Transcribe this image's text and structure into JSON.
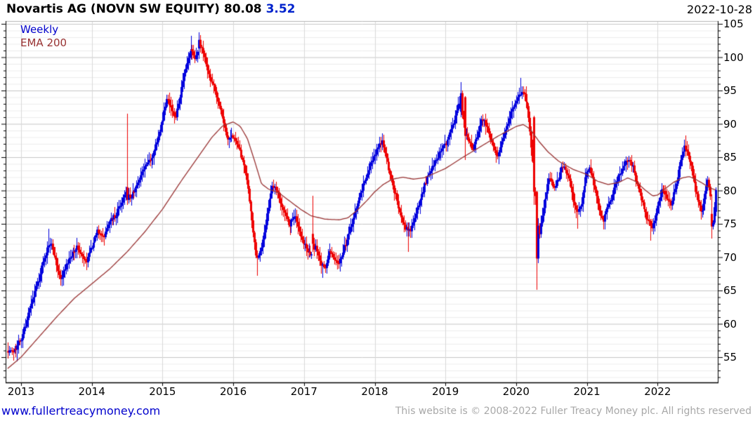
{
  "header": {
    "title": "Novartis AG (NOVN SW EQUITY) 80.08",
    "change": "3.52",
    "date": "2022-10-28"
  },
  "legend": {
    "timeframe": "Weekly",
    "overlay": "EMA 200"
  },
  "footer": {
    "link": "www.fullertreacymoney.com",
    "copyright": "This website is © 2008-2022 Fuller Treacy Money plc. All rights reserved"
  },
  "colors": {
    "up": "#0000dd",
    "down": "#ee0000",
    "ema": "#993333",
    "title": "#000000",
    "change": "#0022cc",
    "link": "#0000cc",
    "copyright": "#a8a8a8",
    "axis": "#000000",
    "top_border": "#b5b5b5",
    "grid_major": "#c6c6c6",
    "grid_minor": "#ededed",
    "grid_year": "#d9d9d9",
    "label": "#000000"
  },
  "chart_data": {
    "type": "bar",
    "subtype": "weekly-candlestick-with-ema",
    "symbol": "NOVN SW EQUITY",
    "last_close": 80.08,
    "change": 3.52,
    "title": "Novartis AG (NOVN SW EQUITY)",
    "xlabel": "",
    "ylabel": "",
    "x_ticks": [
      2013,
      2014,
      2015,
      2016,
      2017,
      2018,
      2019,
      2020,
      2021,
      2022
    ],
    "y_ticks": [
      55,
      60,
      65,
      70,
      75,
      80,
      85,
      90,
      95,
      100,
      105
    ],
    "y_minor_step": 1,
    "xlim": [
      2012.81,
      2022.82
    ],
    "ylim": [
      51.2,
      105.4
    ],
    "grid": true,
    "price_anchors": [
      [
        2012.81,
        56.2
      ],
      [
        2012.87,
        55.7
      ],
      [
        2012.93,
        56.5
      ],
      [
        2013.0,
        57.8
      ],
      [
        2013.06,
        60.0
      ],
      [
        2013.13,
        62.5
      ],
      [
        2013.2,
        65.0
      ],
      [
        2013.28,
        68.0
      ],
      [
        2013.36,
        71.0
      ],
      [
        2013.42,
        72.3
      ],
      [
        2013.48,
        70.0
      ],
      [
        2013.55,
        66.6
      ],
      [
        2013.62,
        68.5
      ],
      [
        2013.7,
        70.0
      ],
      [
        2013.78,
        71.5
      ],
      [
        2013.85,
        70.2
      ],
      [
        2013.92,
        69.2
      ],
      [
        2014.0,
        71.5
      ],
      [
        2014.08,
        74.0
      ],
      [
        2014.16,
        73.0
      ],
      [
        2014.25,
        75.5
      ],
      [
        2014.34,
        76.3
      ],
      [
        2014.42,
        78.3
      ],
      [
        2014.48,
        80.0
      ],
      [
        2014.54,
        78.8
      ],
      [
        2014.62,
        80.5
      ],
      [
        2014.7,
        82.5
      ],
      [
        2014.78,
        84.0
      ],
      [
        2014.86,
        85.5
      ],
      [
        2014.93,
        87.5
      ],
      [
        2015.0,
        91.0
      ],
      [
        2015.06,
        94.3
      ],
      [
        2015.12,
        92.0
      ],
      [
        2015.18,
        90.8
      ],
      [
        2015.25,
        94.5
      ],
      [
        2015.32,
        98.0
      ],
      [
        2015.4,
        101.2
      ],
      [
        2015.46,
        99.6
      ],
      [
        2015.53,
        102.0
      ],
      [
        2015.59,
        100.2
      ],
      [
        2015.65,
        97.2
      ],
      [
        2015.72,
        95.6
      ],
      [
        2015.79,
        93.0
      ],
      [
        2015.86,
        90.0
      ],
      [
        2015.93,
        87.2
      ],
      [
        2016.0,
        88.3
      ],
      [
        2016.07,
        86.2
      ],
      [
        2016.13,
        84.5
      ],
      [
        2016.2,
        80.5
      ],
      [
        2016.27,
        74.5
      ],
      [
        2016.33,
        69.8
      ],
      [
        2016.39,
        71.2
      ],
      [
        2016.45,
        74.5
      ],
      [
        2016.51,
        78.8
      ],
      [
        2016.56,
        81.0
      ],
      [
        2016.63,
        79.5
      ],
      [
        2016.71,
        77.0
      ],
      [
        2016.79,
        74.8
      ],
      [
        2016.87,
        76.2
      ],
      [
        2016.95,
        73.2
      ],
      [
        2017.03,
        71.2
      ],
      [
        2017.1,
        70.2
      ],
      [
        2017.16,
        72.0
      ],
      [
        2017.23,
        69.0
      ],
      [
        2017.29,
        68.0
      ],
      [
        2017.36,
        71.0
      ],
      [
        2017.43,
        69.6
      ],
      [
        2017.5,
        69.2
      ],
      [
        2017.58,
        71.8
      ],
      [
        2017.66,
        74.5
      ],
      [
        2017.74,
        77.5
      ],
      [
        2017.81,
        80.3
      ],
      [
        2017.89,
        82.5
      ],
      [
        2017.96,
        84.5
      ],
      [
        2018.04,
        86.5
      ],
      [
        2018.1,
        87.2
      ],
      [
        2018.18,
        84.2
      ],
      [
        2018.26,
        80.6
      ],
      [
        2018.34,
        77.2
      ],
      [
        2018.42,
        74.6
      ],
      [
        2018.5,
        74.0
      ],
      [
        2018.58,
        76.5
      ],
      [
        2018.66,
        79.5
      ],
      [
        2018.74,
        82.0
      ],
      [
        2018.81,
        83.5
      ],
      [
        2018.89,
        85.0
      ],
      [
        2018.96,
        86.5
      ],
      [
        2019.04,
        88.0
      ],
      [
        2019.12,
        90.5
      ],
      [
        2019.19,
        93.5
      ],
      [
        2019.3,
        88.0
      ],
      [
        2019.38,
        86.2
      ],
      [
        2019.45,
        88.5
      ],
      [
        2019.52,
        91.0
      ],
      [
        2019.59,
        89.5
      ],
      [
        2019.66,
        87.0
      ],
      [
        2019.73,
        85.0
      ],
      [
        2019.8,
        87.5
      ],
      [
        2019.88,
        90.0
      ],
      [
        2019.95,
        92.5
      ],
      [
        2020.02,
        94.2
      ],
      [
        2020.1,
        95.0
      ],
      [
        2020.17,
        91.5
      ],
      [
        2020.32,
        73.5
      ],
      [
        2020.4,
        78.5
      ],
      [
        2020.47,
        82.5
      ],
      [
        2020.53,
        80.2
      ],
      [
        2020.6,
        82.0
      ],
      [
        2020.66,
        84.0
      ],
      [
        2020.73,
        82.5
      ],
      [
        2020.79,
        79.5
      ],
      [
        2020.86,
        76.2
      ],
      [
        2020.93,
        78.5
      ],
      [
        2020.98,
        82.0
      ],
      [
        2021.03,
        84.0
      ],
      [
        2021.09,
        81.0
      ],
      [
        2021.16,
        77.5
      ],
      [
        2021.22,
        75.6
      ],
      [
        2021.29,
        77.5
      ],
      [
        2021.36,
        79.5
      ],
      [
        2021.43,
        82.0
      ],
      [
        2021.51,
        83.5
      ],
      [
        2021.58,
        85.0
      ],
      [
        2021.65,
        83.5
      ],
      [
        2021.72,
        80.5
      ],
      [
        2021.8,
        77.5
      ],
      [
        2021.87,
        75.2
      ],
      [
        2021.93,
        74.2
      ],
      [
        2022.0,
        78.0
      ],
      [
        2022.06,
        80.5
      ],
      [
        2022.13,
        79.0
      ],
      [
        2022.19,
        77.6
      ],
      [
        2022.26,
        81.0
      ],
      [
        2022.32,
        84.5
      ],
      [
        2022.38,
        86.6
      ],
      [
        2022.44,
        85.0
      ],
      [
        2022.5,
        82.0
      ],
      [
        2022.56,
        78.6
      ],
      [
        2022.62,
        76.2
      ],
      [
        2022.67,
        80.0
      ],
      [
        2022.71,
        82.2
      ],
      [
        2022.75,
        78.0
      ],
      [
        2022.78,
        74.8
      ],
      [
        2022.82,
        80.08
      ]
    ],
    "ema_anchors": [
      [
        2012.8,
        53.2
      ],
      [
        2013.0,
        55.0
      ],
      [
        2013.25,
        58.0
      ],
      [
        2013.5,
        61.0
      ],
      [
        2013.75,
        63.8
      ],
      [
        2014.0,
        66.0
      ],
      [
        2014.25,
        68.2
      ],
      [
        2014.5,
        70.8
      ],
      [
        2014.75,
        73.8
      ],
      [
        2015.0,
        77.2
      ],
      [
        2015.25,
        81.2
      ],
      [
        2015.5,
        85.0
      ],
      [
        2015.7,
        88.0
      ],
      [
        2015.85,
        89.7
      ],
      [
        2016.0,
        90.3
      ],
      [
        2016.1,
        89.6
      ],
      [
        2016.2,
        87.8
      ],
      [
        2016.3,
        84.5
      ],
      [
        2016.4,
        81.0
      ],
      [
        2016.5,
        80.2
      ],
      [
        2016.65,
        79.6
      ],
      [
        2016.8,
        78.4
      ],
      [
        2016.95,
        77.2
      ],
      [
        2017.1,
        76.2
      ],
      [
        2017.3,
        75.7
      ],
      [
        2017.5,
        75.6
      ],
      [
        2017.62,
        75.9
      ],
      [
        2017.75,
        77.0
      ],
      [
        2017.9,
        78.6
      ],
      [
        2018.0,
        79.8
      ],
      [
        2018.12,
        80.9
      ],
      [
        2018.25,
        81.7
      ],
      [
        2018.4,
        82.0
      ],
      [
        2018.55,
        81.7
      ],
      [
        2018.7,
        81.9
      ],
      [
        2018.85,
        82.6
      ],
      [
        2019.0,
        83.3
      ],
      [
        2019.25,
        85.0
      ],
      [
        2019.5,
        86.6
      ],
      [
        2019.75,
        88.2
      ],
      [
        2020.0,
        89.6
      ],
      [
        2020.1,
        89.9
      ],
      [
        2020.2,
        89.2
      ],
      [
        2020.32,
        87.4
      ],
      [
        2020.45,
        85.8
      ],
      [
        2020.6,
        84.4
      ],
      [
        2020.8,
        83.2
      ],
      [
        2021.0,
        82.4
      ],
      [
        2021.15,
        81.4
      ],
      [
        2021.3,
        80.9
      ],
      [
        2021.45,
        81.2
      ],
      [
        2021.58,
        81.9
      ],
      [
        2021.7,
        81.3
      ],
      [
        2021.82,
        80.1
      ],
      [
        2021.93,
        79.2
      ],
      [
        2022.0,
        79.3
      ],
      [
        2022.1,
        80.2
      ],
      [
        2022.22,
        81.2
      ],
      [
        2022.35,
        81.9
      ],
      [
        2022.45,
        82.1
      ],
      [
        2022.55,
        81.6
      ],
      [
        2022.65,
        81.0
      ],
      [
        2022.73,
        80.4
      ],
      [
        2022.82,
        80.1
      ]
    ],
    "events": [
      {
        "t": 2012.94,
        "low": 54.4
      },
      {
        "t": 2013.38,
        "high": 74.3
      },
      {
        "t": 2014.5,
        "open": 80.5,
        "close": 78.6,
        "high": 91.5,
        "low": 77.8
      },
      {
        "t": 2015.4,
        "high": 103.2
      },
      {
        "t": 2015.52,
        "open": 101.3,
        "close": 102.6,
        "high": 103.7
      },
      {
        "t": 2016.33,
        "low": 67.2
      },
      {
        "t": 2017.13,
        "open": 73.5,
        "close": 72.0,
        "high": 79.2,
        "low": 70.8
      },
      {
        "t": 2017.25,
        "low": 66.9
      },
      {
        "t": 2018.46,
        "low": 70.8
      },
      {
        "t": 2019.21,
        "open": 91.8,
        "close": 94.6,
        "high": 96.3
      },
      {
        "t": 2019.27,
        "open": 94.0,
        "close": 88.2,
        "low": 84.6
      },
      {
        "t": 2020.06,
        "high": 96.9
      },
      {
        "t": 2020.245,
        "open": 91.0,
        "close": 79.8,
        "low": 77.8
      },
      {
        "t": 2020.285,
        "open": 79.8,
        "close": 69.8,
        "low": 65.2
      },
      {
        "t": 2020.86,
        "low": 74.2
      },
      {
        "t": 2021.9,
        "low": 72.5
      },
      {
        "t": 2022.39,
        "high": 88.3
      },
      {
        "t": 2022.77,
        "open": 76.5,
        "close": 74.6,
        "low": 72.8
      },
      {
        "t": 2022.82,
        "open": 76.8,
        "close": 80.08,
        "high": 80.5,
        "low": 76.2
      }
    ]
  }
}
